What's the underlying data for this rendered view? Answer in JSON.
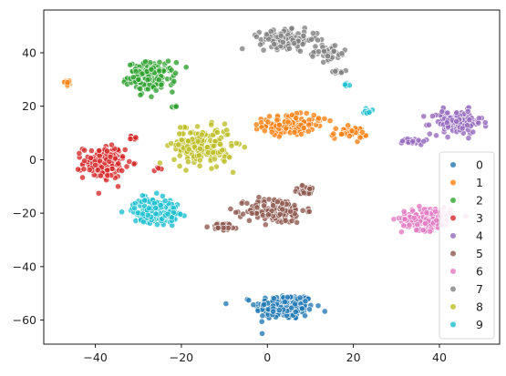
{
  "chart_data": {
    "type": "scatter",
    "title": "",
    "xlabel": "",
    "ylabel": "",
    "xlim": [
      -52,
      54
    ],
    "ylim": [
      -69,
      56
    ],
    "xticks": [
      -40,
      -20,
      0,
      20,
      40
    ],
    "yticks": [
      -60,
      -40,
      -20,
      0,
      20,
      40
    ],
    "xtick_labels": [
      "−40",
      "−20",
      "0",
      "20",
      "40"
    ],
    "ytick_labels": [
      "−60",
      "−40",
      "−20",
      "0",
      "20",
      "40"
    ],
    "grid": false,
    "legend_position": "lower-right",
    "series": [
      {
        "name": "0",
        "color": "#1f77b4",
        "clusters": [
          {
            "cx": 4,
            "cy": -55,
            "sx": 4.5,
            "sy": 3.2,
            "n": 220
          }
        ]
      },
      {
        "name": "1",
        "color": "#ff7f0e",
        "clusters": [
          {
            "cx": 5,
            "cy": 13,
            "sx": 4.0,
            "sy": 2.5,
            "n": 130
          },
          {
            "cx": 19,
            "cy": 10,
            "sx": 2.8,
            "sy": 1.5,
            "n": 40
          },
          {
            "cx": -46.5,
            "cy": 28.5,
            "sx": 0.8,
            "sy": 1.0,
            "n": 14
          },
          {
            "cx": 12.5,
            "cy": 15,
            "sx": 1.0,
            "sy": 0.5,
            "n": 5
          }
        ]
      },
      {
        "name": "2",
        "color": "#2ca02c",
        "clusters": [
          {
            "cx": -27,
            "cy": 31,
            "sx": 3.6,
            "sy": 3.6,
            "n": 150
          },
          {
            "cx": -21.5,
            "cy": 20,
            "sx": 0.7,
            "sy": 0.4,
            "n": 5
          }
        ]
      },
      {
        "name": "3",
        "color": "#d62728",
        "clusters": [
          {
            "cx": -38,
            "cy": -1,
            "sx": 3.2,
            "sy": 4.0,
            "n": 170
          },
          {
            "cx": -31,
            "cy": 8,
            "sx": 1.5,
            "sy": 0.6,
            "n": 9
          },
          {
            "cx": -25.5,
            "cy": -3,
            "sx": 0.6,
            "sy": 0.7,
            "n": 5
          }
        ]
      },
      {
        "name": "4",
        "color": "#9467bd",
        "clusters": [
          {
            "cx": 44,
            "cy": 14,
            "sx": 4.0,
            "sy": 3.0,
            "n": 120
          },
          {
            "cx": 34,
            "cy": 7,
            "sx": 1.8,
            "sy": 0.9,
            "n": 20
          }
        ]
      },
      {
        "name": "5",
        "color": "#8c564b",
        "clusters": [
          {
            "cx": 2,
            "cy": -19,
            "sx": 4.5,
            "sy": 3.2,
            "n": 150
          },
          {
            "cx": 9,
            "cy": -11.5,
            "sx": 2.0,
            "sy": 1.2,
            "n": 25
          },
          {
            "cx": -10,
            "cy": -25,
            "sx": 2.2,
            "sy": 1.0,
            "n": 25
          }
        ]
      },
      {
        "name": "6",
        "color": "#e377c2",
        "clusters": [
          {
            "cx": 37,
            "cy": -22,
            "sx": 3.8,
            "sy": 2.8,
            "n": 160
          }
        ]
      },
      {
        "name": "7",
        "color": "#7f7f7f",
        "clusters": [
          {
            "cx": 5,
            "cy": 45,
            "sx": 4.5,
            "sy": 2.2,
            "n": 140
          },
          {
            "cx": 14,
            "cy": 40,
            "sx": 3.0,
            "sy": 2.0,
            "n": 50
          },
          {
            "cx": 17,
            "cy": 33,
            "sx": 1.2,
            "sy": 0.4,
            "n": 10
          }
        ]
      },
      {
        "name": "8",
        "color": "#bcbd22",
        "clusters": [
          {
            "cx": -15,
            "cy": 5,
            "sx": 4.5,
            "sy": 4.5,
            "n": 200
          },
          {
            "cx": -20,
            "cy": 12,
            "sx": 0.6,
            "sy": 0.4,
            "n": 4
          }
        ]
      },
      {
        "name": "9",
        "color": "#17becf",
        "clusters": [
          {
            "cx": -26,
            "cy": -19,
            "sx": 3.5,
            "sy": 3.0,
            "n": 170
          },
          {
            "cx": 23,
            "cy": 18,
            "sx": 1.2,
            "sy": 1.0,
            "n": 12
          },
          {
            "cx": 18.5,
            "cy": 28,
            "sx": 0.6,
            "sy": 0.6,
            "n": 5
          }
        ]
      }
    ]
  }
}
